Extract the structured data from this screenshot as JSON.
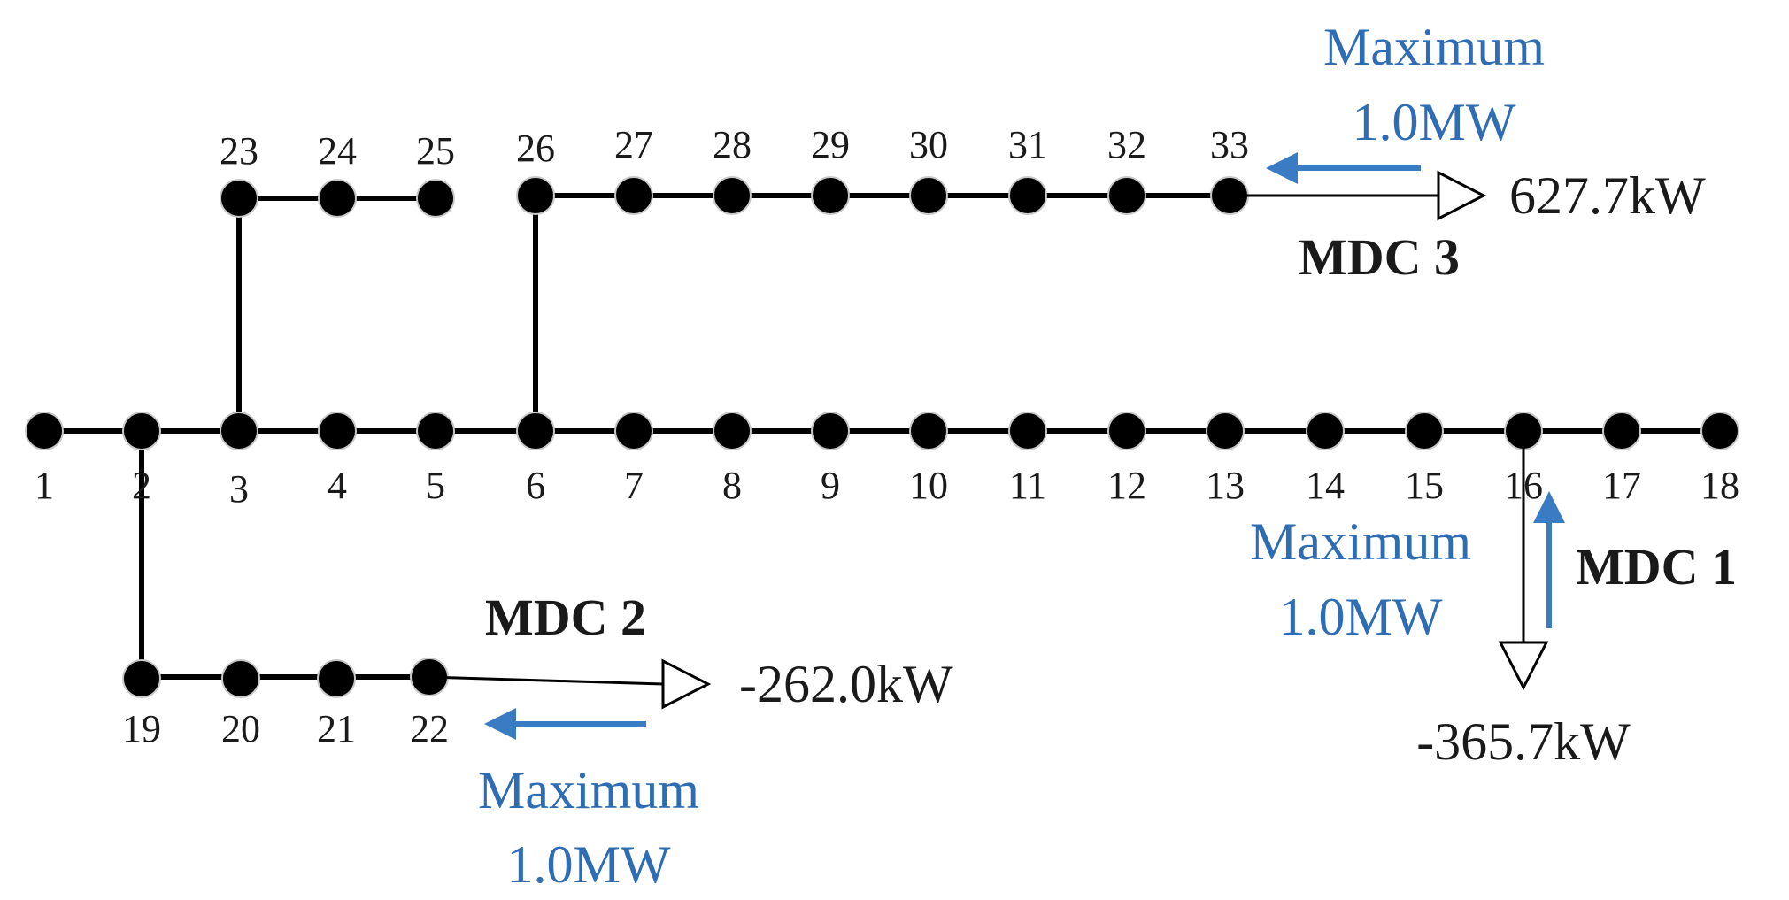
{
  "buses": [
    "1",
    "2",
    "3",
    "4",
    "5",
    "6",
    "7",
    "8",
    "9",
    "10",
    "11",
    "12",
    "13",
    "14",
    "15",
    "16",
    "17",
    "18",
    "19",
    "20",
    "21",
    "22",
    "23",
    "24",
    "25",
    "26",
    "27",
    "28",
    "29",
    "30",
    "31",
    "32",
    "33"
  ],
  "mdc": [
    {
      "id": "mdc1",
      "name": "MDC 1",
      "bus": "16",
      "power": "-365.7kW",
      "limit_line1": "Maximum",
      "limit_line2": "1.0MW"
    },
    {
      "id": "mdc2",
      "name": "MDC 2",
      "bus": "22",
      "power": "-262.0kW",
      "limit_line1": "Maximum",
      "limit_line2": "1.0MW"
    },
    {
      "id": "mdc3",
      "name": "MDC 3",
      "bus": "33",
      "power": "627.7kW",
      "limit_line1": "Maximum",
      "limit_line2": "1.0MW"
    }
  ],
  "colors": {
    "line": "#000000",
    "arrow": "#3a7cc4",
    "limit_text": "#2e6db4"
  }
}
